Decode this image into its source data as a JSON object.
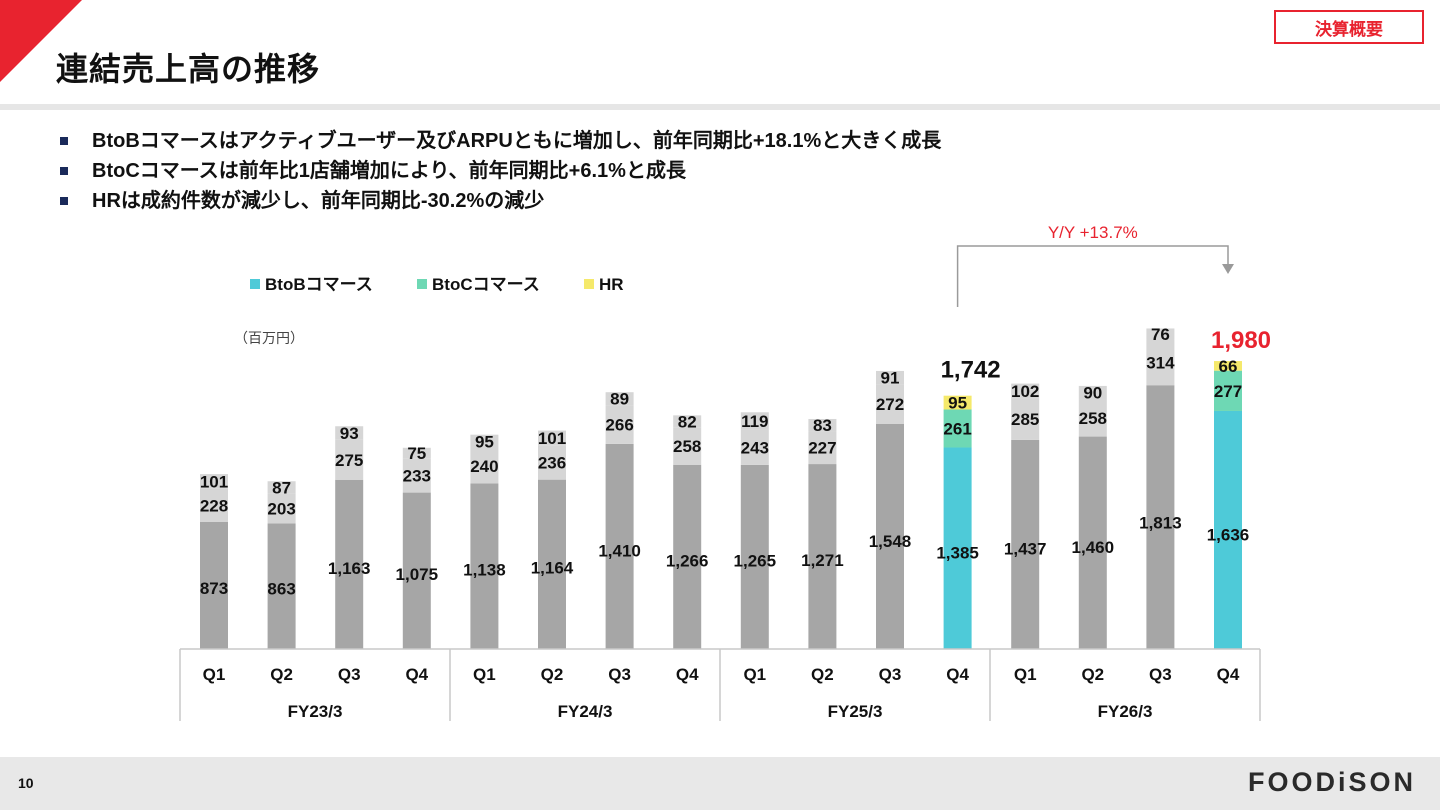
{
  "header": {
    "title": "連結売上高の推移",
    "tag": "決算概要"
  },
  "bullets": [
    "BtoBコマースはアクティブユーザー及びARPUともに増加し、前年同期比+18.1%と大きく成長",
    "BtoCコマースは前年比1店舗増加により、前年同期比+6.1%と成長",
    "HRは成約件数が減少し、前年同期比-30.2%の減少"
  ],
  "footer": {
    "page_number": "10",
    "logo": "FOODiSON"
  },
  "colors": {
    "accent": "#e8232f",
    "btob": "#4ecad8",
    "btoc": "#6ed8b4",
    "hr": "#f5e96b",
    "past_main": "#a6a6a6",
    "past_light": "#d6d6d6"
  },
  "chart_data": {
    "type": "bar",
    "stacked": true,
    "unit_label": "（百万円）",
    "fiscal_years": [
      "FY23/3",
      "FY24/3",
      "FY25/3",
      "FY26/3"
    ],
    "categories": [
      "Q1",
      "Q2",
      "Q3",
      "Q4",
      "Q1",
      "Q2",
      "Q3",
      "Q4",
      "Q1",
      "Q2",
      "Q3",
      "Q4",
      "Q1",
      "Q2",
      "Q3",
      "Q4"
    ],
    "series": [
      {
        "name": "BtoBコマース",
        "values": [
          873,
          863,
          1163,
          1075,
          1138,
          1164,
          1410,
          1266,
          1265,
          1271,
          1548,
          1385,
          1437,
          1460,
          1813,
          1636
        ]
      },
      {
        "name": "BtoCコマース",
        "values": [
          228,
          203,
          275,
          233,
          240,
          236,
          266,
          258,
          243,
          227,
          272,
          261,
          285,
          258,
          314,
          277
        ]
      },
      {
        "name": "HR",
        "values": [
          101,
          87,
          93,
          75,
          95,
          101,
          89,
          82,
          119,
          83,
          91,
          95,
          102,
          90,
          76,
          66
        ]
      }
    ],
    "highlighted_indices": [
      11,
      15
    ],
    "totals": [
      {
        "index": 11,
        "label": "1,742"
      },
      {
        "index": 15,
        "label": "1,980"
      }
    ],
    "yoy_label": "Y/Y +13.7%",
    "ylim": [
      0,
      2300
    ],
    "legend_position": "top-left"
  }
}
